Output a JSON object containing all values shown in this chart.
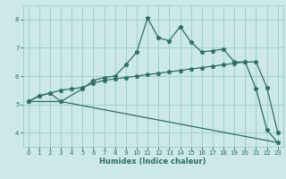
{
  "xlabel": "Humidex (Indice chaleur)",
  "bg_color": "#cce8e8",
  "grid_color": "#9fcfcf",
  "line_color": "#2d6e65",
  "xlim": [
    -0.5,
    23.5
  ],
  "ylim": [
    3.5,
    8.5
  ],
  "xticks": [
    0,
    1,
    2,
    3,
    4,
    5,
    6,
    7,
    8,
    9,
    10,
    11,
    12,
    13,
    14,
    15,
    16,
    17,
    18,
    19,
    20,
    21,
    22,
    23
  ],
  "yticks": [
    4,
    5,
    6,
    7,
    8
  ],
  "line1_x": [
    0,
    1,
    2,
    3,
    4,
    5,
    6,
    7,
    8,
    9,
    10,
    11,
    12,
    13,
    14,
    15,
    16,
    17,
    18,
    19,
    20,
    21,
    22,
    23
  ],
  "line1_y": [
    5.1,
    5.3,
    5.4,
    5.5,
    5.55,
    5.6,
    5.75,
    5.85,
    5.9,
    5.95,
    6.0,
    6.05,
    6.1,
    6.15,
    6.2,
    6.25,
    6.3,
    6.35,
    6.4,
    6.45,
    6.5,
    6.5,
    5.6,
    4.0
  ],
  "line2_x": [
    0,
    1,
    2,
    3,
    5,
    6,
    7,
    8,
    9,
    10,
    11,
    12,
    13,
    14,
    15,
    16,
    17,
    18,
    19,
    20,
    21,
    22,
    23
  ],
  "line2_y": [
    5.1,
    5.3,
    5.4,
    5.1,
    5.55,
    5.85,
    5.95,
    6.0,
    6.4,
    6.85,
    8.05,
    7.35,
    7.25,
    7.75,
    7.2,
    6.85,
    6.9,
    6.95,
    6.5,
    6.5,
    5.55,
    4.1,
    3.65
  ],
  "line3_x": [
    0,
    3,
    23
  ],
  "line3_y": [
    5.1,
    5.1,
    3.65
  ]
}
